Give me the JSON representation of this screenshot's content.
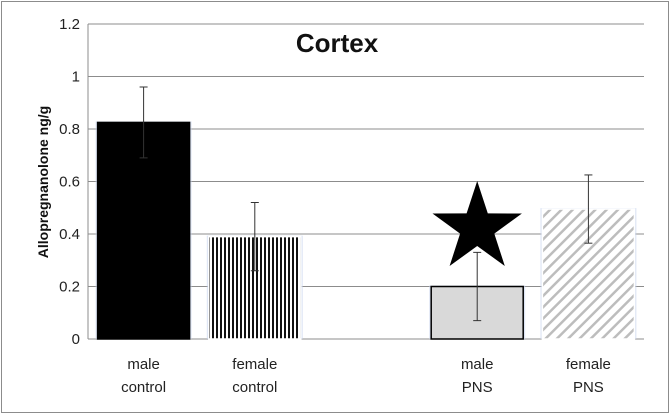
{
  "chart_data": {
    "type": "bar",
    "title": "Cortex",
    "ylabel": "Allopregnanolone ng/g",
    "xlabel": "",
    "ylim": [
      0,
      1.2
    ],
    "yticks": [
      "0",
      "0.2",
      "0.4",
      "0.6",
      "0.8",
      "1",
      "1.2"
    ],
    "grid": true,
    "categories": [
      {
        "line1": "male",
        "line2": "control"
      },
      {
        "line1": "female",
        "line2": "control"
      },
      {
        "line1": "",
        "line2": ""
      },
      {
        "line1": "male",
        "line2": "PNS"
      },
      {
        "line1": "female",
        "line2": "PNS"
      }
    ],
    "values": [
      0.825,
      0.39,
      null,
      0.2,
      0.495
    ],
    "errors": [
      0.135,
      0.13,
      null,
      0.13,
      0.13
    ],
    "fills": [
      "solid-black",
      "vertical-stripes",
      "none",
      "solid-gray",
      "diagonal-stripes"
    ],
    "annotations": [
      {
        "category_index": 3,
        "symbol": "star",
        "color": "#000000"
      }
    ]
  }
}
